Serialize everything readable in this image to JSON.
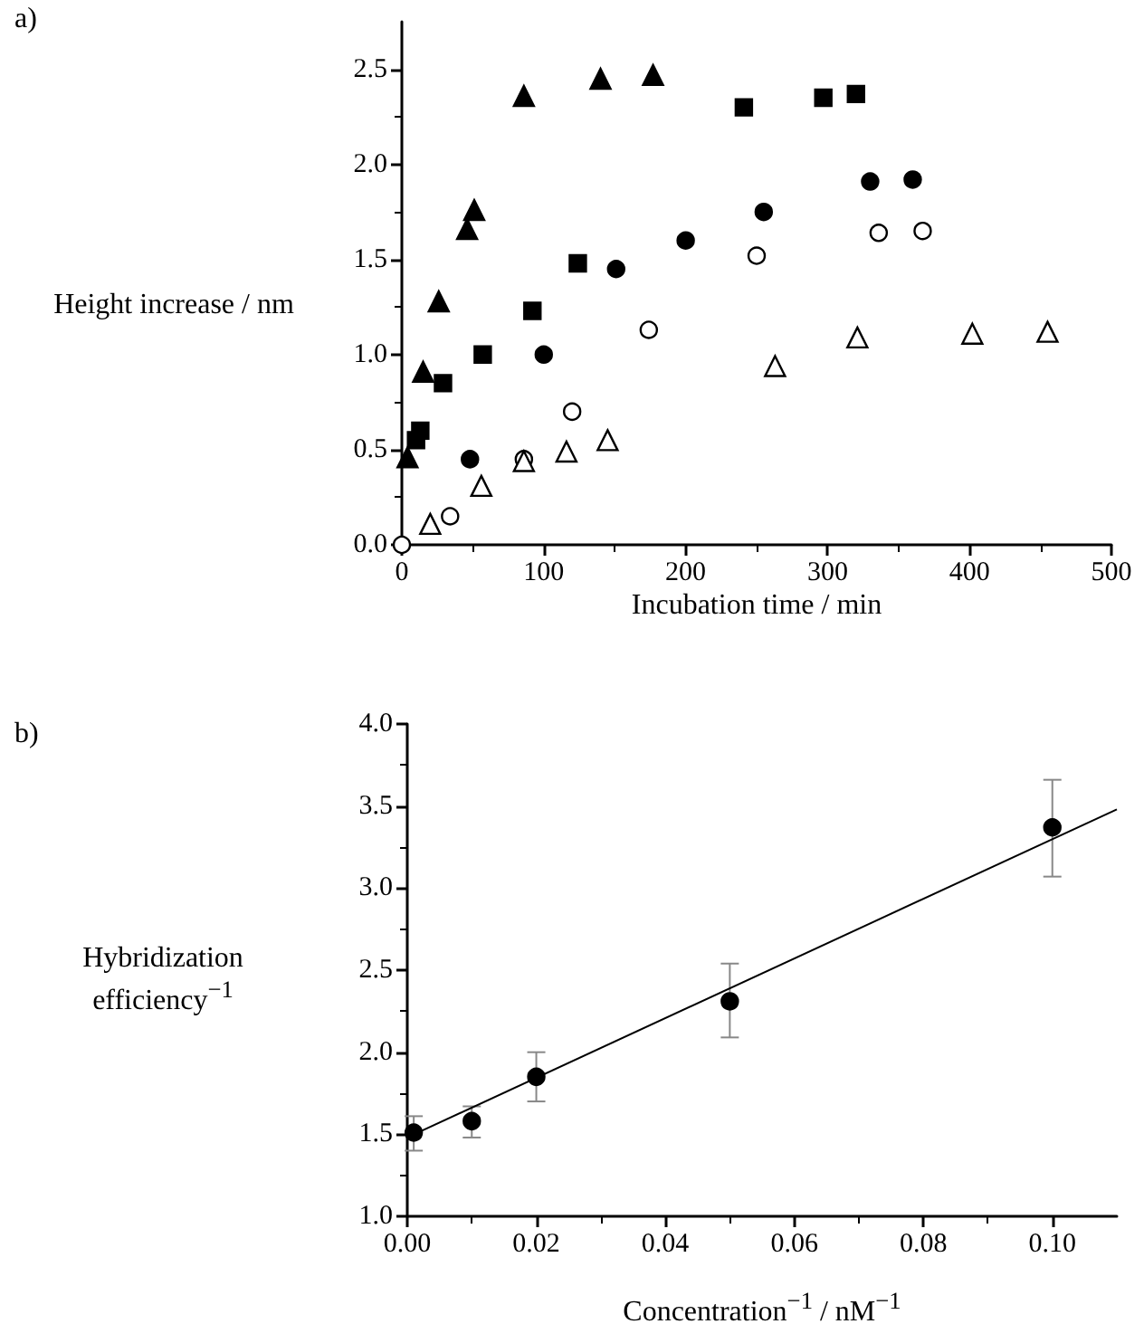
{
  "chart_data": [
    {
      "type": "scatter",
      "annotations": [
        "a)"
      ],
      "xlabel": "Incubation time / min",
      "ylabel": "Height increase / nm",
      "xlim": [
        0,
        500
      ],
      "ylim": [
        0,
        2.75
      ],
      "xticks": [
        0,
        100,
        200,
        300,
        400,
        500
      ],
      "yticks": [
        {
          "value": 0,
          "label": "0.0"
        },
        {
          "value": 0.5,
          "label": "0.5"
        },
        {
          "value": 1,
          "label": "1.0"
        },
        {
          "value": 1.5,
          "label": "1.5"
        },
        {
          "value": 2,
          "label": "2.0"
        },
        {
          "value": 2.5,
          "label": "2.5"
        }
      ],
      "grid": false,
      "series": [
        {
          "color": "#000000",
          "marker": "triangle",
          "x": [
            4,
            15,
            26,
            46,
            51,
            86,
            140,
            177
          ],
          "values": [
            0.46,
            0.91,
            1.28,
            1.66,
            1.76,
            2.36,
            2.45,
            2.47
          ]
        },
        {
          "color": "#000000",
          "marker": "square",
          "x": [
            10,
            13,
            29,
            57,
            92,
            124,
            241,
            297,
            320
          ],
          "values": [
            0.55,
            0.6,
            0.85,
            1.0,
            1.23,
            1.48,
            2.3,
            2.35,
            2.37
          ]
        },
        {
          "color": "#000000",
          "marker": "circle",
          "x": [
            48,
            100,
            151,
            200,
            255,
            330,
            360
          ],
          "values": [
            0.45,
            1.0,
            1.45,
            1.6,
            1.75,
            1.91,
            1.92
          ]
        },
        {
          "color": "#ffffff",
          "marker": "circle",
          "x": [
            0,
            34,
            86,
            120,
            174,
            250,
            336,
            367
          ],
          "values": [
            0,
            0.15,
            0.45,
            0.7,
            1.13,
            1.52,
            1.64,
            1.65
          ]
        },
        {
          "color": "#ffffff",
          "marker": "triangle",
          "x": [
            20,
            56,
            86,
            116,
            145,
            263,
            321,
            402,
            455
          ],
          "values": [
            0.11,
            0.31,
            0.44,
            0.49,
            0.55,
            0.94,
            1.09,
            1.11,
            1.12
          ]
        }
      ]
    },
    {
      "type": "scatter",
      "annotations": [
        "b)"
      ],
      "xlabel": "Concentration$^{−1}$ / nM$^{−1}$",
      "ylabel": "Hybridization efficiency$^{−1}$",
      "xlim": [
        0,
        0.11
      ],
      "ylim": [
        1,
        4
      ],
      "xticks": [
        {
          "value": 0,
          "label": "0.00"
        },
        {
          "value": 0.02,
          "label": "0.02"
        },
        {
          "value": 0.04,
          "label": "0.04"
        },
        {
          "value": 0.06,
          "label": "0.06"
        },
        {
          "value": 0.08,
          "label": "0.08"
        },
        {
          "value": 0.1,
          "label": "0.10"
        }
      ],
      "yticks": [
        {
          "value": 1,
          "label": "1.0"
        },
        {
          "value": 1.5,
          "label": "1.5"
        },
        {
          "value": 2,
          "label": "2.0"
        },
        {
          "value": 2.5,
          "label": "2.5"
        },
        {
          "value": 3,
          "label": "3.0"
        },
        {
          "value": 3.5,
          "label": "3.5"
        },
        {
          "value": 4,
          "label": "4.0"
        }
      ],
      "grid": false,
      "series": [
        {
          "color": "#000000",
          "marker": "circle",
          "x": [
            0.001,
            0.01,
            0.02,
            0.05,
            0.1
          ],
          "values": [
            1.51,
            1.58,
            1.85,
            2.31,
            3.37
          ],
          "errors": [
            [
              1.4,
              1.61
            ],
            [
              1.48,
              1.67
            ],
            [
              1.7,
              2.0
            ],
            [
              2.09,
              2.54
            ],
            [
              3.07,
              3.66
            ]
          ]
        },
        {
          "type": "line",
          "color": "#000000",
          "marker": "none",
          "x": [
            0,
            0.11
          ],
          "values": [
            1.48,
            3.48
          ]
        }
      ]
    }
  ]
}
